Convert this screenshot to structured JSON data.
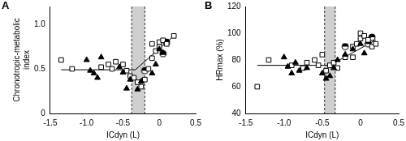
{
  "chart_data": [
    {
      "type": "scatter",
      "title": "A",
      "x_label": "ICdyn (L)",
      "y_label": [
        "Chronotropic-metabolic",
        "index"
      ],
      "xlim": [
        -1.5,
        0.5
      ],
      "xticks": [
        -1.5,
        {
          "value": -1,
          "label": "-1.0"
        },
        -0.5,
        0,
        0.5
      ],
      "ylim": [
        0,
        1.2
      ],
      "yticks": [
        0,
        0.5,
        {
          "value": 1,
          "label": "1.0"
        }
      ],
      "grid": false,
      "series": [
        {
          "marker": "triangle",
          "color": "#000000",
          "x": [
            -1.0,
            -0.95,
            -0.9,
            -0.85,
            -0.8,
            -0.55,
            -0.5,
            -0.45,
            -0.4,
            -0.3,
            -0.25,
            -0.1,
            0.05,
            0.0,
            -0.05
          ],
          "values": [
            0.6,
            0.48,
            0.45,
            0.4,
            0.63,
            0.52,
            0.46,
            0.28,
            0.38,
            0.27,
            0.36,
            0.45,
            0.68,
            0.72,
            0.55
          ]
        },
        {
          "marker": "square",
          "color": "#000000",
          "x": [
            -1.35,
            -1.2,
            -0.8,
            -0.7,
            -0.65,
            -0.6,
            -0.5,
            -0.45,
            -0.4,
            -0.35,
            -0.3,
            -0.25,
            -0.2,
            -0.15,
            -0.1,
            -0.05,
            0.0,
            0.0,
            0.05,
            0.1,
            0.2,
            -0.1
          ],
          "values": [
            0.6,
            0.5,
            0.52,
            0.55,
            0.5,
            0.58,
            0.55,
            0.48,
            0.42,
            0.4,
            0.35,
            0.3,
            0.38,
            0.5,
            0.62,
            0.7,
            0.75,
            0.8,
            0.82,
            0.78,
            0.87,
            0.78
          ]
        },
        {
          "marker": "half_circle",
          "color": "#000000",
          "x": [
            -0.2,
            0.05,
            0.1
          ],
          "values": [
            0.48,
            0.67,
            0.8
          ]
        }
      ],
      "fit_line": {
        "x": [
          -1.35,
          -0.33,
          0.2
        ],
        "values": [
          0.49,
          0.49,
          0.87
        ],
        "color": "#000000"
      },
      "band": [
        -0.38,
        -0.2
      ]
    },
    {
      "type": "scatter",
      "title": "B",
      "x_label": "ICdyn (L)",
      "y_label": [
        "HRmax (%)"
      ],
      "xlim": [
        -1.5,
        0.5
      ],
      "xticks": [
        -1.5,
        {
          "value": -1,
          "label": "-1.0"
        },
        -0.5,
        0,
        0.5
      ],
      "ylim": [
        40,
        120
      ],
      "yticks": [
        40,
        60,
        80,
        100,
        120
      ],
      "grid": false,
      "series": [
        {
          "marker": "triangle",
          "color": "#000000",
          "x": [
            -1.0,
            -0.95,
            -0.9,
            -0.85,
            -0.8,
            -0.7,
            -0.5,
            -0.45,
            -0.4,
            -0.35,
            -0.3,
            -0.2,
            -0.1,
            0.05,
            0.0
          ],
          "values": [
            82,
            75,
            70,
            78,
            72,
            74,
            70,
            66,
            68,
            74,
            80,
            84,
            88,
            85,
            92
          ]
        },
        {
          "marker": "square",
          "color": "#000000",
          "x": [
            -1.35,
            -1.2,
            -0.9,
            -0.75,
            -0.7,
            -0.6,
            -0.55,
            -0.5,
            -0.45,
            -0.4,
            -0.35,
            -0.3,
            -0.2,
            -0.1,
            -0.05,
            0.0,
            0.0,
            0.05,
            0.1,
            0.15,
            0.2,
            -0.1
          ],
          "values": [
            60,
            80,
            76,
            74,
            78,
            80,
            76,
            84,
            72,
            76,
            78,
            74,
            82,
            90,
            92,
            100,
            96,
            98,
            95,
            90,
            92,
            82
          ]
        },
        {
          "marker": "half_circle",
          "color": "#000000",
          "x": [
            -0.2,
            0.1,
            0.15
          ],
          "values": [
            90,
            92,
            97
          ]
        }
      ],
      "fit_line": {
        "x": [
          -1.35,
          -0.4,
          0.2
        ],
        "values": [
          76,
          76,
          95
        ],
        "color": "#000000"
      },
      "band": [
        -0.47,
        -0.33
      ]
    }
  ]
}
